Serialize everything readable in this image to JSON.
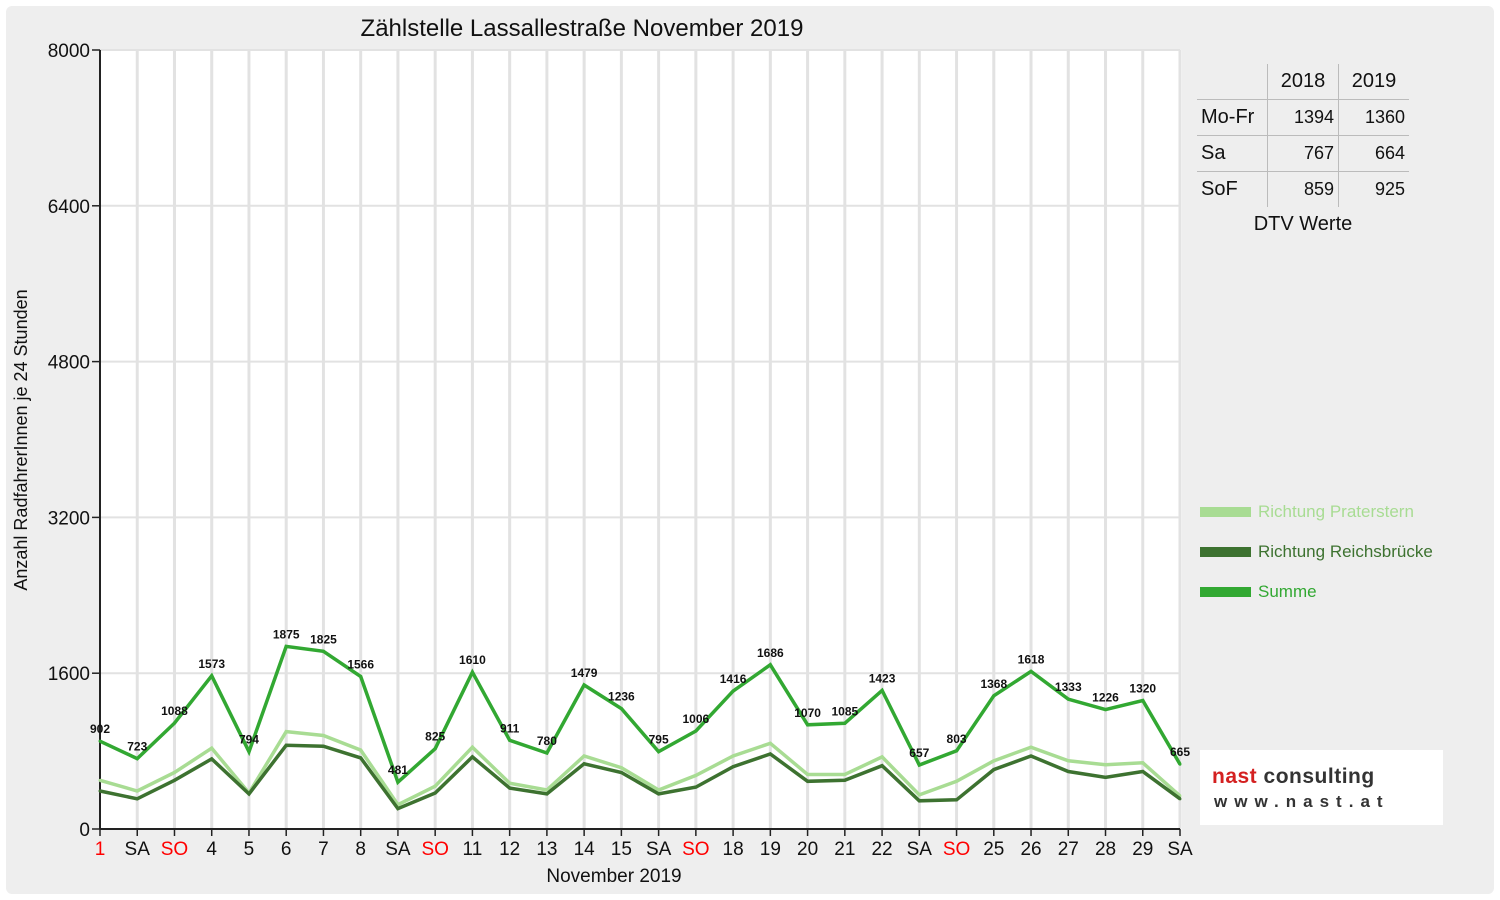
{
  "chart_data": {
    "type": "line",
    "title": "Zählstelle Lassallestraße November 2019",
    "xlabel": "November 2019",
    "ylabel": "Anzahl RadfahrerInnen je 24 Stunden",
    "ylim": [
      0,
      8000
    ],
    "yticks": [
      "0",
      "1600",
      "3200",
      "4800",
      "6400",
      "8000"
    ],
    "grid": true,
    "legend_position": "right",
    "categories": [
      "1",
      "SA",
      "SO",
      "4",
      "5",
      "6",
      "7",
      "8",
      "SA",
      "SO",
      "11",
      "12",
      "13",
      "14",
      "15",
      "SA",
      "SO",
      "18",
      "19",
      "20",
      "21",
      "22",
      "SA",
      "SO",
      "25",
      "26",
      "27",
      "28",
      "29",
      "SA"
    ],
    "highlight_categories": [
      0,
      2,
      9,
      16,
      23
    ],
    "highlight_color": "#ff0000",
    "series": [
      {
        "name": "Richtung Praterstern",
        "color": "#a8dc93",
        "values": [
          500,
          390,
          580,
          830,
          370,
          1000,
          960,
          810,
          250,
          440,
          840,
          470,
          400,
          750,
          630,
          400,
          550,
          750,
          880,
          560,
          560,
          740,
          350,
          490,
          700,
          840,
          700,
          660,
          680,
          340
        ]
      },
      {
        "name": "Richtung Reichsbrücke",
        "color": "#3d7230",
        "values": [
          390,
          310,
          500,
          720,
          360,
          860,
          850,
          730,
          210,
          370,
          740,
          420,
          360,
          670,
          580,
          360,
          430,
          640,
          770,
          490,
          500,
          650,
          290,
          300,
          610,
          750,
          590,
          530,
          590,
          310
        ]
      },
      {
        "name": "Summe",
        "color": "#32a832",
        "labeled": true,
        "values": [
          902,
          723,
          1088,
          1573,
          794,
          1875,
          1825,
          1566,
          481,
          825,
          1610,
          911,
          780,
          1479,
          1236,
          795,
          1006,
          1416,
          1686,
          1070,
          1085,
          1423,
          657,
          803,
          1368,
          1618,
          1333,
          1226,
          1320,
          665
        ]
      }
    ]
  },
  "dtv_table": {
    "caption": "DTV Werte",
    "columns": [
      "2018",
      "2019"
    ],
    "rows": [
      {
        "label": "Mo-Fr",
        "v2018": "1394",
        "v2019": "1360"
      },
      {
        "label": "Sa",
        "v2018": "767",
        "v2019": "664"
      },
      {
        "label": "SoF",
        "v2018": "859",
        "v2019": "925"
      }
    ]
  },
  "logo": {
    "name_part1": "nast",
    "name_part2": "consulting",
    "url": "www.nast.at",
    "accent_color": "#d42020"
  }
}
